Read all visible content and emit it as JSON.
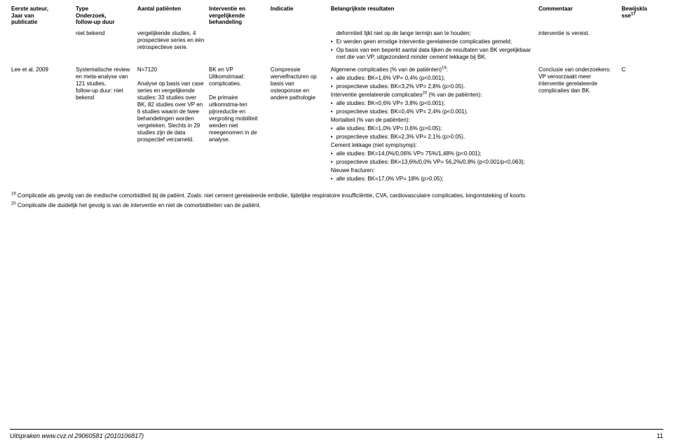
{
  "colWidths": [
    "90px",
    "86px",
    "100px",
    "86px",
    "84px",
    "290px",
    "116px",
    "60px"
  ],
  "headers": {
    "c0": "Eerste auteur,\nJaar van\npublicatie",
    "c1": "Type\nOnderzoek,\nfollow-up duur",
    "c2": "Aantal patiënten",
    "c3": "Interventie en vergelijkende behandeling",
    "c4": "Indicatie",
    "c5": "Belangrijkste resultaten",
    "c6": "Commentaar",
    "c7_a": "Bewijskla",
    "c7_b": "sse",
    "c7_sup": "17"
  },
  "row1": {
    "c1": "niet bekend",
    "c2": "vergelijkende studies, 4 prospectieve series en één retrospectieve serie.",
    "c5_pre": "deformiteit lijkt niet op de lange termijn aan te houden;",
    "c5_b2": "Er werden geen ernstige interventie gerelateerde complicaties gemeld;",
    "c5_b3": "Op basis van een beperkt aantal data lijken de resultaten van BK vergelijkbaar met die van VP, uitgezonderd minder cement lekkage bij BK.",
    "c6": "interventie is vereist."
  },
  "row2": {
    "c0": "Lee et al, 2009",
    "c1": "Systematische review en meta-analyse van 121 studies,\nfollow-up duur: niet bekend",
    "c2": "N=7120\n\nAnalyse op basis van case series en vergelijkende studies: 33 studies over BK, 82 studies over VP en 6 studies waarin de twee behandelingen worden vergeleken. Slechts in 29 studies zijn de data prospectief verzameld.",
    "c3": "BK en VP\nUitkomstmaat: complicaties.\n\nDe primaire uitkomstma-ten pijnreductie en vergroting mobiliteit werden niet meegenomen in de analyse.",
    "c4": "Compressie wervelfracturen op basis van osteoporose en andere pathologie",
    "c5_title_a": "Algemene complicaties (% van de patiënten)",
    "c5_title_a_sup": "19",
    "c5_a1": "alle studies: BK=1,6% VP= 0,4% (p<0.001);",
    "c5_a2": "prospectieve studies: BK=3,2% VP= 2,8% (p>0.05).",
    "c5_title_b_a": "Interventie gerelateerde complicaties",
    "c5_title_b_sup": "20",
    "c5_title_b_b": " (% van de patiënten):",
    "c5_b1": "alle studies: BK=0,6% VP= 3,8% (p<0.001);",
    "c5_b2": "prospectieve studies: BK=0,4% VP= 2,4% (p<0.001).",
    "c5_title_c": "Mortaliteit (% van de patiënten):",
    "c5_c1": "alle studies: BK=1,0% VP= 0,6% (p>0.05);",
    "c5_c2": "prospectieve studies: BK=2,3% VP= 2,1% (p>0.05).",
    "c5_title_d": "Cement lekkage (niet symp/symp):",
    "c5_d1": "alle studies: BK=14,0%/0,06% VP= 75%/1,48% (p<0.001);",
    "c5_d2": "prospectieve studies: BK=13,6%/0,0% VP= 56,2%/0,8% (p<0.001/p<0,063);",
    "c5_title_e": "Nieuwe fracturen:",
    "c5_e1": "alle studies: BK=17,0% VP= 18% (p>0.05);",
    "c6": "Conclusie van onderzoekers:\nVP veroorzaakt meer interventie gerelateerde complicaties dan BK.",
    "c7": "C"
  },
  "footnotes": {
    "f19_sup": "19",
    "f19": " Complicatie als gevolg van de medische comorbiditeit bij de patiënt. Zoals: niet cement gerelateerde embolie, tijdelijke respiratoire insufficiëntie, CVA, cardiovasculaire complicaties, longontsteking of koorts.",
    "f20_sup": "20",
    "f20": " Complicatie die duidelijk het gevolg is van de interventie en niet de comorbiditeiten van de patiënt."
  },
  "footer": {
    "source": "Uitspraken www.cvz.nl 29060581 (2010106817)",
    "page": "11"
  }
}
